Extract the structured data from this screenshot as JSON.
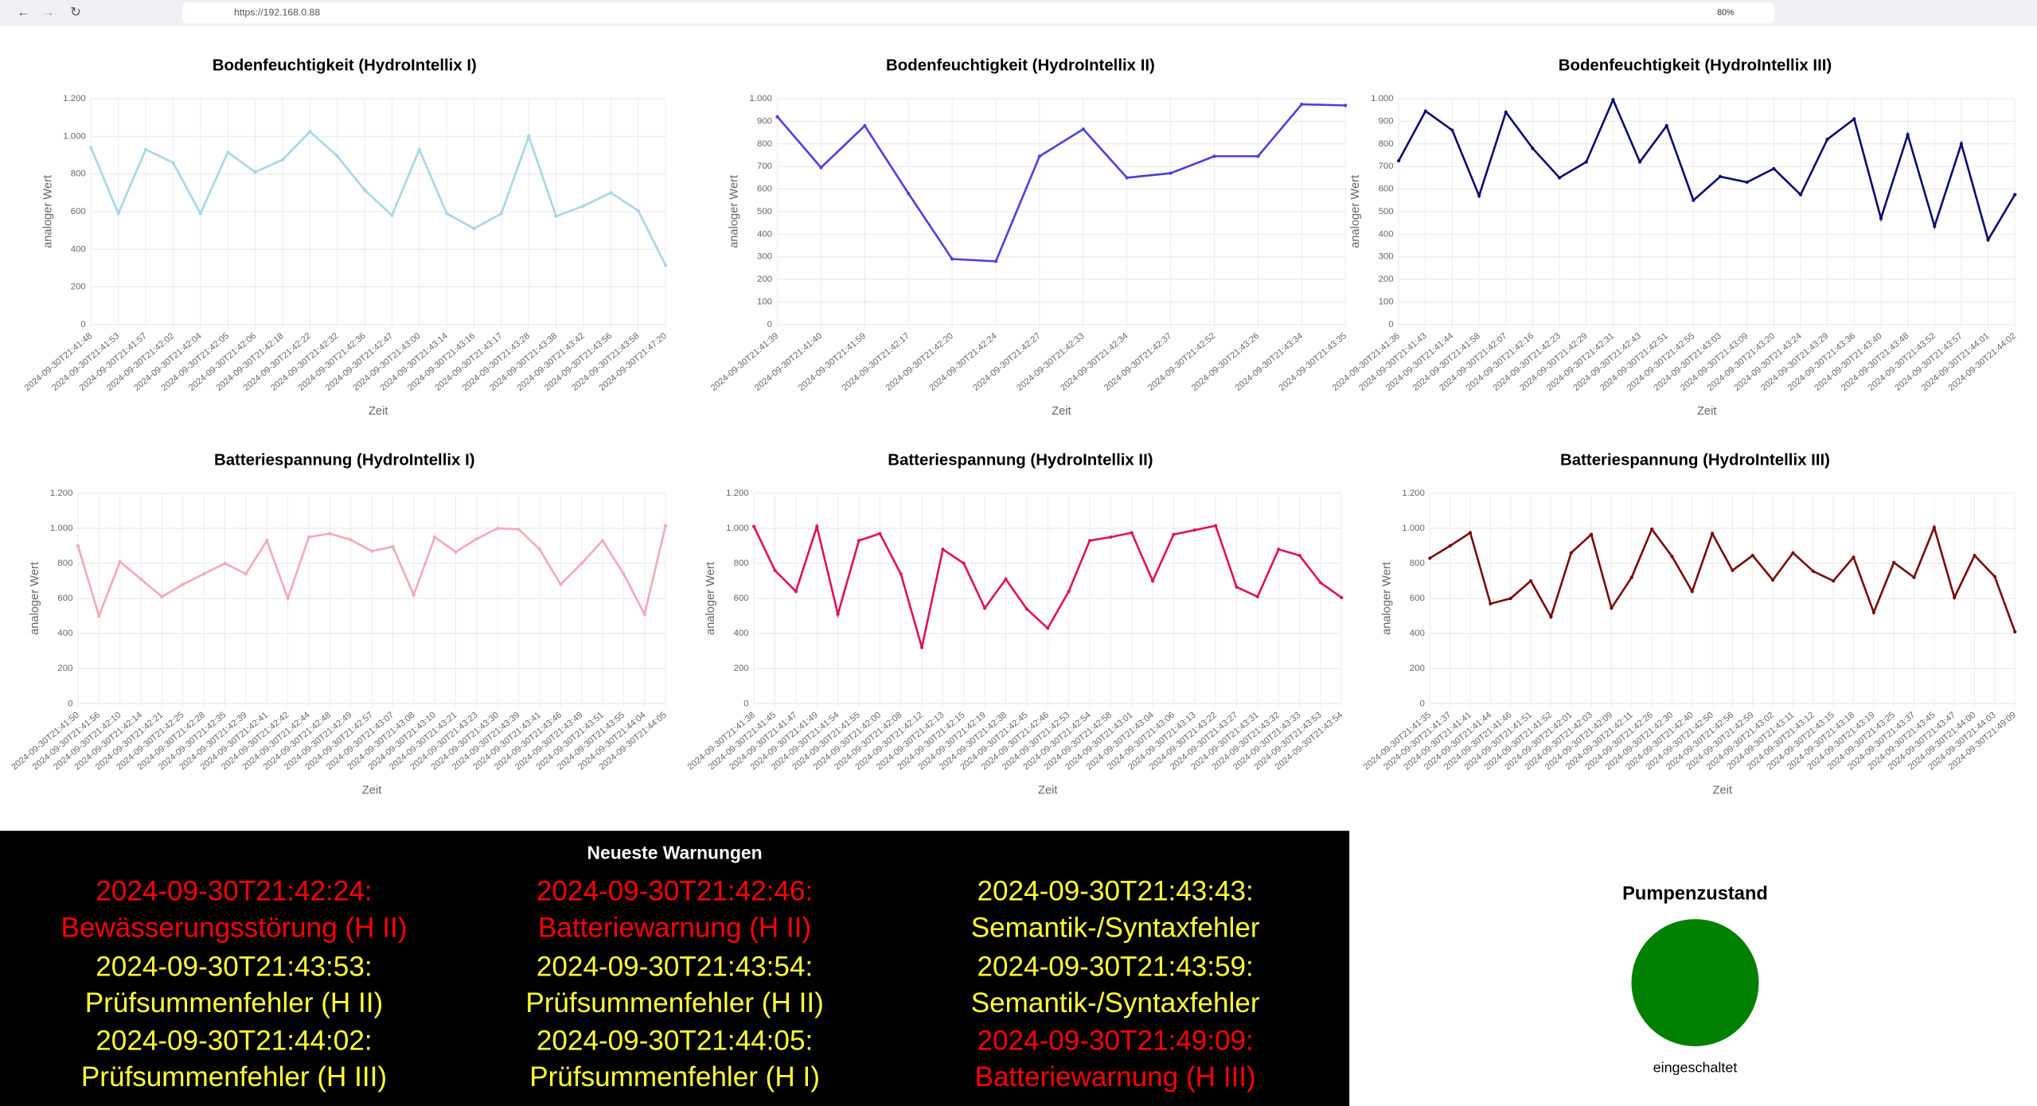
{
  "browser": {
    "url": "https://192.168.0.88",
    "zoom": "80%"
  },
  "chart_data": [
    {
      "type": "line",
      "title": "Bodenfeuchtigkeit (HydroIntellix I)",
      "x_label": "Zeit",
      "y_label": "analoger Wert",
      "color": "#a6d7e6",
      "ylim": [
        0,
        1200
      ],
      "yticks": [
        0,
        200,
        400,
        600,
        800,
        {
          "value": 1000,
          "label": "1.000"
        },
        {
          "value": 1200,
          "label": "1.200"
        }
      ],
      "grid": true,
      "categories": [
        "2024-09-30T21:41:48",
        "2024-09-30T21:41:53",
        "2024-09-30T21:41:57",
        "2024-09-30T21:42:02",
        "2024-09-30T21:42:04",
        "2024-09-30T21:42:05",
        "2024-09-30T21:42:06",
        "2024-09-30T21:42:18",
        "2024-09-30T21:42:22",
        "2024-09-30T21:42:32",
        "2024-09-30T21:42:36",
        "2024-09-30T21:42:47",
        "2024-09-30T21:43:00",
        "2024-09-30T21:43:14",
        "2024-09-30T21:43:16",
        "2024-09-30T21:43:17",
        "2024-09-30T21:43:28",
        "2024-09-30T21:43:38",
        "2024-09-30T21:43:42",
        "2024-09-30T21:43:56",
        "2024-09-30T21:43:58",
        "2024-09-30T21:47:20"
      ],
      "values": [
        940,
        590,
        930,
        860,
        590,
        915,
        810,
        875,
        1025,
        895,
        715,
        580,
        930,
        590,
        510,
        590,
        1000,
        575,
        630,
        700,
        605,
        315
      ]
    },
    {
      "type": "line",
      "title": "Bodenfeuchtigkeit (HydroIntellix II)",
      "x_label": "Zeit",
      "y_label": "analoger Wert",
      "color": "#4b3fe0",
      "ylim": [
        0,
        1000
      ],
      "yticks": [
        0,
        100,
        200,
        300,
        400,
        500,
        600,
        700,
        800,
        900,
        {
          "value": 1000,
          "label": "1.000"
        }
      ],
      "grid": true,
      "categories": [
        "2024-09-30T21:41:39",
        "2024-09-30T21:41:40",
        "2024-09-30T21:41:59",
        "2024-09-30T21:42:17",
        "2024-09-30T21:42:20",
        "2024-09-30T21:42:24",
        "2024-09-30T21:42:27",
        "2024-09-30T21:42:33",
        "2024-09-30T21:42:34",
        "2024-09-30T21:42:37",
        "2024-09-30T21:42:52",
        "2024-09-30T21:43:26",
        "2024-09-30T21:43:34",
        "2024-09-30T21:43:35"
      ],
      "values": [
        920,
        695,
        880,
        580,
        290,
        280,
        745,
        865,
        650,
        670,
        745,
        745,
        975,
        970
      ]
    },
    {
      "type": "line",
      "title": "Bodenfeuchtigkeit (HydroIntellix III)",
      "x_label": "Zeit",
      "y_label": "analoger Wert",
      "color": "#0c0c6e",
      "ylim": [
        0,
        1000
      ],
      "yticks": [
        0,
        100,
        200,
        300,
        400,
        500,
        600,
        700,
        800,
        900,
        {
          "value": 1000,
          "label": "1.000"
        }
      ],
      "grid": true,
      "categories": [
        "2024-09-30T21:41:36",
        "2024-09-30T21:41:43",
        "2024-09-30T21:41:44",
        "2024-09-30T21:41:58",
        "2024-09-30T21:42:07",
        "2024-09-30T21:42:16",
        "2024-09-30T21:42:23",
        "2024-09-30T21:42:29",
        "2024-09-30T21:42:31",
        "2024-09-30T21:42:43",
        "2024-09-30T21:42:51",
        "2024-09-30T21:42:55",
        "2024-09-30T21:43:03",
        "2024-09-30T21:43:09",
        "2024-09-30T21:43:20",
        "2024-09-30T21:43:24",
        "2024-09-30T21:43:29",
        "2024-09-30T21:43:36",
        "2024-09-30T21:43:40",
        "2024-09-30T21:43:48",
        "2024-09-30T21:43:52",
        "2024-09-30T21:43:57",
        "2024-09-30T21:44:01",
        "2024-09-30T21:44:02"
      ],
      "values": [
        725,
        945,
        860,
        570,
        940,
        780,
        650,
        720,
        995,
        720,
        880,
        550,
        655,
        630,
        690,
        575,
        820,
        910,
        470,
        840,
        435,
        800,
        375,
        575
      ]
    },
    {
      "type": "line",
      "title": "Batteriespannung (HydroIntellix I)",
      "x_label": "Zeit",
      "y_label": "analoger Wert",
      "color": "#f4a9b4",
      "ylim": [
        0,
        1200
      ],
      "yticks": [
        0,
        200,
        400,
        600,
        800,
        {
          "value": 1000,
          "label": "1.000"
        },
        {
          "value": 1200,
          "label": "1.200"
        }
      ],
      "grid": true,
      "categories": [
        "2024-09-30T21:41:50",
        "2024-09-30T21:41:56",
        "2024-09-30T21:42:10",
        "2024-09-30T21:42:14",
        "2024-09-30T21:42:21",
        "2024-09-30T21:42:25",
        "2024-09-30T21:42:28",
        "2024-09-30T21:42:35",
        "2024-09-30T21:42:39",
        "2024-09-30T21:42:41",
        "2024-09-30T21:42:42",
        "2024-09-30T21:42:44",
        "2024-09-30T21:42:48",
        "2024-09-30T21:42:49",
        "2024-09-30T21:42:57",
        "2024-09-30T21:43:07",
        "2024-09-30T21:43:08",
        "2024-09-30T21:43:10",
        "2024-09-30T21:43:21",
        "2024-09-30T21:43:23",
        "2024-09-30T21:43:30",
        "2024-09-30T21:43:39",
        "2024-09-30T21:43:41",
        "2024-09-30T21:43:46",
        "2024-09-30T21:43:49",
        "2024-09-30T21:43:51",
        "2024-09-30T21:43:55",
        "2024-09-30T21:44:04",
        "2024-09-30T21:44:05"
      ],
      "values": [
        900,
        500,
        810,
        710,
        610,
        680,
        740,
        800,
        740,
        930,
        600,
        950,
        970,
        935,
        870,
        895,
        620,
        950,
        865,
        940,
        1000,
        995,
        880,
        680,
        800,
        930,
        740,
        510,
        1015
      ]
    },
    {
      "type": "line",
      "title": "Batteriespannung (HydroIntellix II)",
      "x_label": "Zeit",
      "y_label": "analoger Wert",
      "color": "#e0105f",
      "ylim": [
        0,
        1200
      ],
      "yticks": [
        0,
        200,
        400,
        600,
        800,
        {
          "value": 1000,
          "label": "1.000"
        },
        {
          "value": 1200,
          "label": "1.200"
        }
      ],
      "grid": true,
      "categories": [
        "2024-09-30T21:41:38",
        "2024-09-30T21:41:45",
        "2024-09-30T21:41:47",
        "2024-09-30T21:41:49",
        "2024-09-30T21:41:54",
        "2024-09-30T21:41:55",
        "2024-09-30T21:42:00",
        "2024-09-30T21:42:08",
        "2024-09-30T21:42:12",
        "2024-09-30T21:42:13",
        "2024-09-30T21:42:15",
        "2024-09-30T21:42:19",
        "2024-09-30T21:42:38",
        "2024-09-30T21:42:45",
        "2024-09-30T21:42:46",
        "2024-09-30T21:42:53",
        "2024-09-30T21:42:54",
        "2024-09-30T21:42:58",
        "2024-09-30T21:43:01",
        "2024-09-30T21:43:04",
        "2024-09-30T21:43:06",
        "2024-09-30T21:43:13",
        "2024-09-30T21:43:22",
        "2024-09-30T21:43:27",
        "2024-09-30T21:43:31",
        "2024-09-30T21:43:32",
        "2024-09-30T21:43:33",
        "2024-09-30T21:43:53",
        "2024-09-30T21:43:54"
      ],
      "values": [
        1010,
        760,
        640,
        1010,
        510,
        930,
        970,
        740,
        320,
        880,
        800,
        545,
        710,
        540,
        430,
        640,
        930,
        950,
        975,
        700,
        965,
        990,
        1015,
        665,
        610,
        880,
        845,
        690,
        605
      ]
    },
    {
      "type": "line",
      "title": "Batteriespannung (HydroIntellix III)",
      "x_label": "Zeit",
      "y_label": "analoger Wert",
      "color": "#7a0a0a",
      "ylim": [
        0,
        1200
      ],
      "yticks": [
        0,
        200,
        400,
        600,
        800,
        {
          "value": 1000,
          "label": "1.000"
        },
        {
          "value": 1200,
          "label": "1.200"
        }
      ],
      "grid": true,
      "categories": [
        "2024-09-30T21:41:35",
        "2024-09-30T21:41:37",
        "2024-09-30T21:41:41",
        "2024-09-30T21:41:44",
        "2024-09-30T21:41:46",
        "2024-09-30T21:41:51",
        "2024-09-30T21:41:52",
        "2024-09-30T21:42:01",
        "2024-09-30T21:42:03",
        "2024-09-30T21:42:09",
        "2024-09-30T21:42:11",
        "2024-09-30T21:42:26",
        "2024-09-30T21:42:30",
        "2024-09-30T21:42:40",
        "2024-09-30T21:42:50",
        "2024-09-30T21:42:56",
        "2024-09-30T21:42:59",
        "2024-09-30T21:43:02",
        "2024-09-30T21:43:11",
        "2024-09-30T21:43:12",
        "2024-09-30T21:43:15",
        "2024-09-30T21:43:18",
        "2024-09-30T21:43:19",
        "2024-09-30T21:43:25",
        "2024-09-30T21:43:37",
        "2024-09-30T21:43:45",
        "2024-09-30T21:43:47",
        "2024-09-30T21:44:00",
        "2024-09-30T21:44:03",
        "2024-09-30T21:49:09"
      ],
      "values": [
        830,
        900,
        975,
        570,
        600,
        700,
        495,
        860,
        965,
        545,
        720,
        995,
        840,
        640,
        970,
        760,
        845,
        705,
        860,
        755,
        700,
        835,
        520,
        805,
        720,
        1005,
        605,
        845,
        725,
        410
      ]
    }
  ],
  "warnings": {
    "title": "Neueste Warnungen",
    "items": [
      {
        "time": "2024-09-30T21:42:24:",
        "message": "Bewässerungsstörung (H II)",
        "color": "#ff0000"
      },
      {
        "time": "2024-09-30T21:42:46:",
        "message": "Batteriewarnung (H II)",
        "color": "#ff0000"
      },
      {
        "time": "2024-09-30T21:43:43:",
        "message": "Semantik-/Syntaxfehler",
        "color": "#ffff33"
      },
      {
        "time": "2024-09-30T21:43:53:",
        "message": "Prüfsummenfehler (H II)",
        "color": "#ffff33"
      },
      {
        "time": "2024-09-30T21:43:54:",
        "message": "Prüfsummenfehler (H II)",
        "color": "#ffff33"
      },
      {
        "time": "2024-09-30T21:43:59:",
        "message": "Semantik-/Syntaxfehler",
        "color": "#ffff33"
      },
      {
        "time": "2024-09-30T21:44:02:",
        "message": "Prüfsummenfehler (H III)",
        "color": "#ffff33"
      },
      {
        "time": "2024-09-30T21:44:05:",
        "message": "Prüfsummenfehler (H I)",
        "color": "#ffff33"
      },
      {
        "time": "2024-09-30T21:49:09:",
        "message": "Batteriewarnung (H III)",
        "color": "#ff0000"
      }
    ]
  },
  "pump": {
    "title": "Pumpenzustand",
    "state": "eingeschaltet",
    "color": "#008000"
  }
}
